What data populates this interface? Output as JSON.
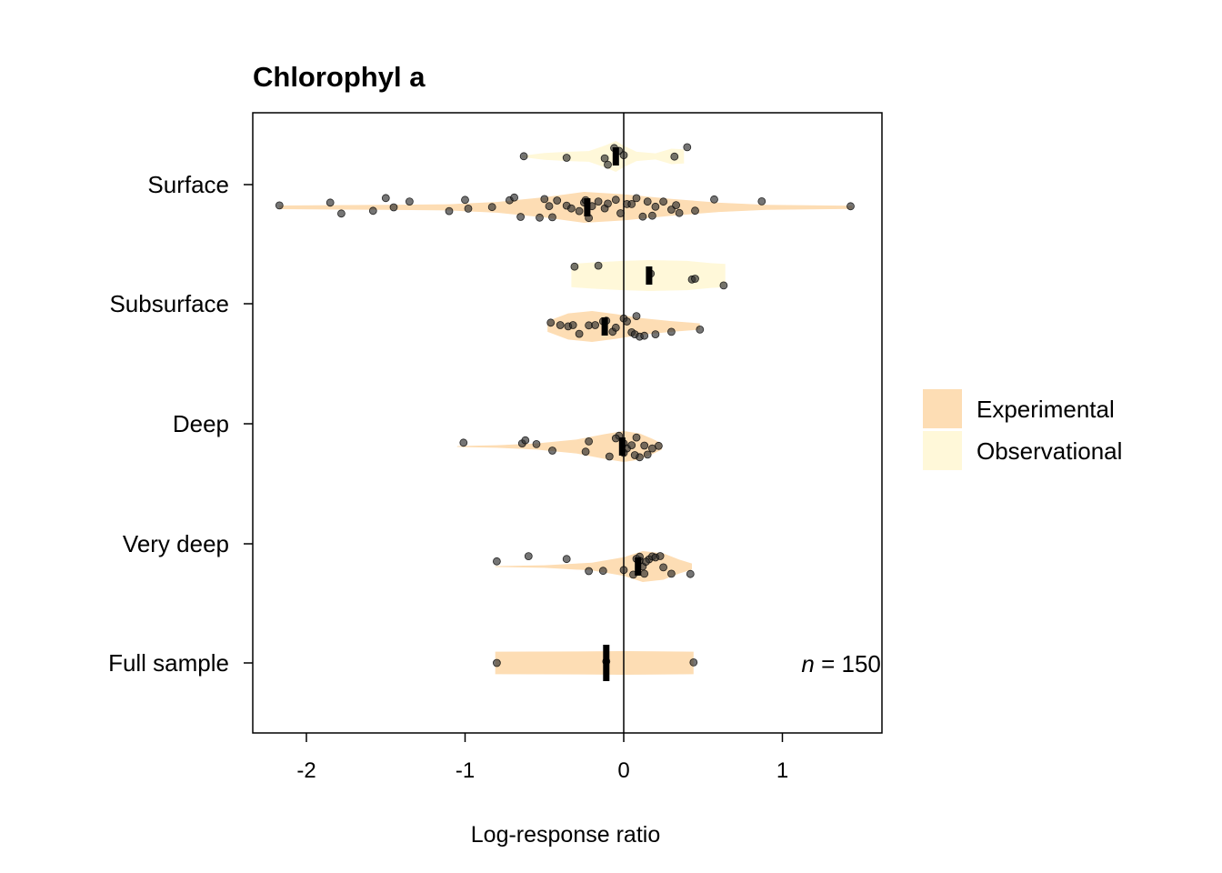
{
  "chart_data": {
    "type": "violin",
    "title": "Chlorophyl a",
    "xlabel": "Log-response ratio",
    "ylabel": "",
    "xlim": [
      -2.35,
      1.62
    ],
    "x_ticks": [
      -2,
      -1,
      0,
      1
    ],
    "reference_line_x": 0,
    "legend": {
      "position": "right",
      "entries": [
        {
          "name": "Experimental",
          "color": "#FDDDB4"
        },
        {
          "name": "Observational",
          "color": "#FFF8D9"
        }
      ]
    },
    "point_color": "#2b2b2b",
    "annotation": {
      "italic": "n",
      "rest": " = 150",
      "x": 1.12,
      "category": "Full sample"
    },
    "categories": [
      "Surface",
      "Subsurface",
      "Deep",
      "Very deep",
      "Full sample"
    ],
    "groups": [
      {
        "category": "Surface",
        "series": "Observational",
        "median": -0.05,
        "density": [
          [
            -0.64,
            0.05
          ],
          [
            -0.5,
            0.22
          ],
          [
            -0.35,
            0.3
          ],
          [
            -0.22,
            0.35
          ],
          [
            -0.12,
            0.7
          ],
          [
            -0.05,
            1.0
          ],
          [
            0.0,
            0.7
          ],
          [
            0.08,
            0.3
          ],
          [
            0.2,
            0.2
          ],
          [
            0.3,
            0.5
          ],
          [
            0.38,
            0.45
          ]
        ],
        "points": [
          -0.63,
          -0.36,
          -0.06,
          -0.03,
          0.0,
          0.32,
          0.4,
          -0.1,
          -0.12
        ]
      },
      {
        "category": "Surface",
        "series": "Experimental",
        "median": -0.23,
        "density": [
          [
            -2.17,
            0.12
          ],
          [
            -1.5,
            0.16
          ],
          [
            -1.1,
            0.2
          ],
          [
            -0.8,
            0.35
          ],
          [
            -0.5,
            0.65
          ],
          [
            -0.25,
            1.0
          ],
          [
            0.0,
            0.85
          ],
          [
            0.3,
            0.55
          ],
          [
            0.6,
            0.3
          ],
          [
            0.9,
            0.16
          ],
          [
            1.44,
            0.1
          ]
        ],
        "points": [
          -2.17,
          -1.85,
          -1.78,
          -1.58,
          -1.5,
          -1.45,
          -1.35,
          -1.1,
          -1.0,
          -0.98,
          -0.83,
          -0.72,
          -0.69,
          -0.65,
          -0.53,
          -0.5,
          -0.47,
          -0.45,
          -0.42,
          -0.36,
          -0.33,
          -0.28,
          -0.25,
          -0.24,
          -0.22,
          -0.2,
          -0.16,
          -0.12,
          -0.1,
          -0.05,
          -0.02,
          0.02,
          0.05,
          0.08,
          0.12,
          0.15,
          0.18,
          0.2,
          0.25,
          0.3,
          0.33,
          0.35,
          0.45,
          0.57,
          0.87,
          1.43
        ]
      },
      {
        "category": "Subsurface",
        "series": "Observational",
        "median": 0.16,
        "density": [
          [
            -0.33,
            0.75
          ],
          [
            -0.2,
            0.85
          ],
          [
            0.0,
            0.95
          ],
          [
            0.16,
            1.0
          ],
          [
            0.4,
            0.95
          ],
          [
            0.55,
            0.8
          ],
          [
            0.64,
            0.75
          ]
        ],
        "points": [
          -0.31,
          -0.16,
          0.17,
          0.43,
          0.45,
          0.63
        ]
      },
      {
        "category": "Subsurface",
        "series": "Experimental",
        "median": -0.12,
        "density": [
          [
            -0.48,
            0.35
          ],
          [
            -0.35,
            0.85
          ],
          [
            -0.2,
            1.0
          ],
          [
            -0.05,
            0.8
          ],
          [
            0.1,
            0.55
          ],
          [
            0.3,
            0.35
          ],
          [
            0.48,
            0.2
          ]
        ],
        "points": [
          -0.46,
          -0.4,
          -0.35,
          -0.32,
          -0.28,
          -0.22,
          -0.18,
          -0.13,
          -0.11,
          -0.07,
          0.0,
          0.02,
          0.05,
          0.07,
          0.1,
          0.13,
          0.2,
          0.3,
          0.48,
          -0.05,
          0.08
        ]
      },
      {
        "category": "Deep",
        "series": "Experimental",
        "median": -0.01,
        "density": [
          [
            -1.05,
            0.03
          ],
          [
            -0.8,
            0.08
          ],
          [
            -0.55,
            0.2
          ],
          [
            -0.3,
            0.45
          ],
          [
            -0.12,
            0.8
          ],
          [
            0.0,
            1.0
          ],
          [
            0.1,
            0.85
          ],
          [
            0.18,
            0.5
          ],
          [
            0.24,
            0.2
          ]
        ],
        "points": [
          -1.01,
          -0.64,
          -0.62,
          -0.55,
          -0.45,
          -0.24,
          -0.22,
          -0.09,
          -0.03,
          0.0,
          0.02,
          0.05,
          0.08,
          0.1,
          0.13,
          0.15,
          0.18,
          0.22,
          -0.05,
          0.0,
          0.07
        ]
      },
      {
        "category": "Very deep",
        "series": "Experimental",
        "median": 0.09,
        "density": [
          [
            -0.81,
            0.03
          ],
          [
            -0.5,
            0.08
          ],
          [
            -0.2,
            0.25
          ],
          [
            0.0,
            0.6
          ],
          [
            0.12,
            1.0
          ],
          [
            0.25,
            0.85
          ],
          [
            0.35,
            0.45
          ],
          [
            0.43,
            0.2
          ]
        ],
        "points": [
          -0.8,
          -0.6,
          -0.36,
          -0.22,
          -0.13,
          0.0,
          0.06,
          0.1,
          0.13,
          0.16,
          0.18,
          0.2,
          0.23,
          0.25,
          0.3,
          0.42,
          0.08,
          0.12,
          0.1,
          0.14
        ]
      },
      {
        "category": "Full sample",
        "series": "Experimental",
        "median": -0.11,
        "density": [
          [
            -0.81,
            0.95
          ],
          [
            -0.3,
            0.97
          ],
          [
            0.0,
            1.0
          ],
          [
            0.2,
            0.98
          ],
          [
            0.44,
            0.95
          ]
        ],
        "points": [
          -0.8,
          -0.11,
          0.44
        ]
      }
    ]
  }
}
